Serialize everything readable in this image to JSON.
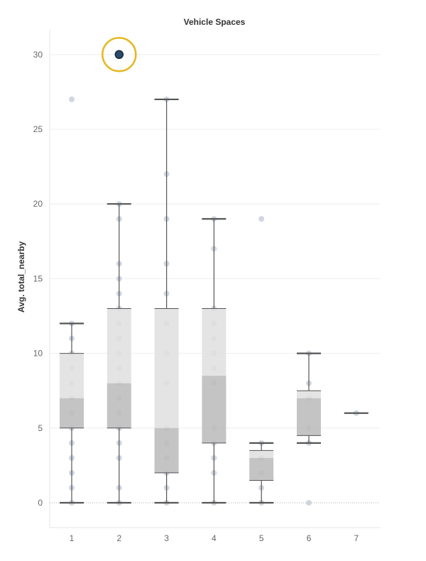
{
  "chart_data": {
    "type": "box",
    "title": "Vehicle Spaces",
    "xlabel": "",
    "ylabel": "Avg. total_nearby",
    "categories": [
      "1",
      "2",
      "3",
      "4",
      "5",
      "6",
      "7"
    ],
    "ylim": [
      -1.7,
      31.7
    ],
    "yticks": [
      0,
      5,
      10,
      15,
      20,
      25,
      30
    ],
    "grid": true,
    "boxes": [
      {
        "category": "1",
        "min": 0,
        "q1": 5,
        "median": 7,
        "q3": 10,
        "max": 12,
        "points": [
          0,
          1,
          2,
          3,
          4,
          5,
          6,
          7,
          8,
          9,
          10,
          11,
          12,
          27
        ]
      },
      {
        "category": "2",
        "min": 0,
        "q1": 5,
        "median": 8,
        "q3": 13,
        "max": 20,
        "points": [
          0,
          1,
          3,
          4,
          5,
          6,
          7,
          8,
          9,
          10,
          11,
          12,
          13,
          14,
          15,
          16,
          19,
          20,
          30
        ]
      },
      {
        "category": "3",
        "min": 0,
        "q1": 2,
        "median": 5,
        "q3": 13,
        "max": 27,
        "points": [
          0,
          1,
          2,
          3,
          4,
          5,
          8,
          10,
          12,
          14,
          16,
          19,
          22,
          27
        ]
      },
      {
        "category": "4",
        "min": 0,
        "q1": 4,
        "median": 8.5,
        "q3": 13,
        "max": 19,
        "points": [
          0,
          2,
          3,
          4,
          5,
          8,
          9,
          10,
          11,
          12,
          13,
          17,
          19
        ]
      },
      {
        "category": "5",
        "min": 0,
        "q1": 1.5,
        "median": 3,
        "q3": 3.5,
        "max": 4,
        "points": [
          0,
          1,
          2,
          3,
          4,
          19
        ]
      },
      {
        "category": "6",
        "min": 4,
        "q1": 4.5,
        "median": 7,
        "q3": 7.5,
        "max": 10,
        "points": [
          0,
          4,
          5,
          7,
          8,
          10
        ]
      },
      {
        "category": "7",
        "min": 6,
        "q1": 6,
        "median": 6,
        "q3": 6,
        "max": 6,
        "points": [
          6
        ]
      }
    ],
    "highlight": {
      "category": "2",
      "value": 30
    }
  },
  "colors": {
    "box_upper": "#e0e0e0",
    "box_lower": "#bcbcbc",
    "whisker": "#555555",
    "point": "#c9d0da",
    "highlight_point": "#2b4a6e",
    "highlight_ring": "#e6b821",
    "grid": "#eeeeee",
    "zero_line": "#aaaaaa"
  }
}
